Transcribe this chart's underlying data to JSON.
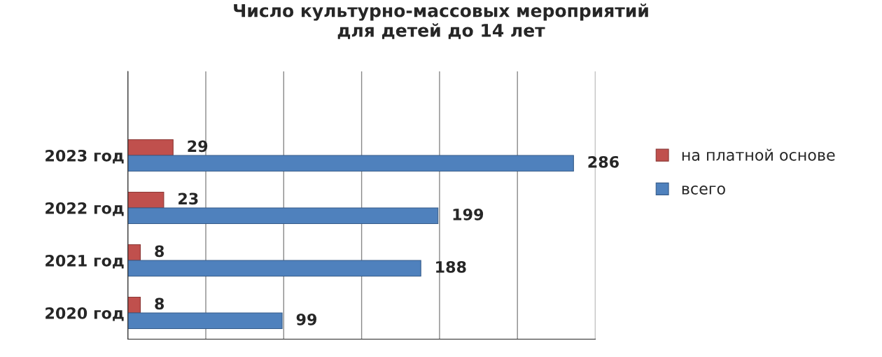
{
  "chart_data": {
    "type": "bar",
    "orientation": "horizontal",
    "title": "Число культурно-массовых мероприятий\nдля детей до 14 лет",
    "categories": [
      "2023 год",
      "2022 год",
      "2021 год",
      "2020 год"
    ],
    "series": [
      {
        "name": "на платной основе",
        "color": "#c0504d",
        "values": [
          29,
          23,
          8,
          8
        ]
      },
      {
        "name": "всего",
        "color": "#4f81bd",
        "values": [
          286,
          199,
          188,
          99
        ]
      }
    ],
    "xlim": [
      0,
      300
    ],
    "xticks": [
      {
        "value": 0,
        "label": null
      },
      {
        "value": 50,
        "label": null
      },
      {
        "value": 100,
        "label": null
      },
      {
        "value": 150,
        "label": null
      },
      {
        "value": 200,
        "label": null
      },
      {
        "value": 250,
        "label": null
      },
      {
        "value": 300,
        "label": null
      }
    ],
    "grid": "x",
    "legend": "right",
    "data_labels": true
  }
}
